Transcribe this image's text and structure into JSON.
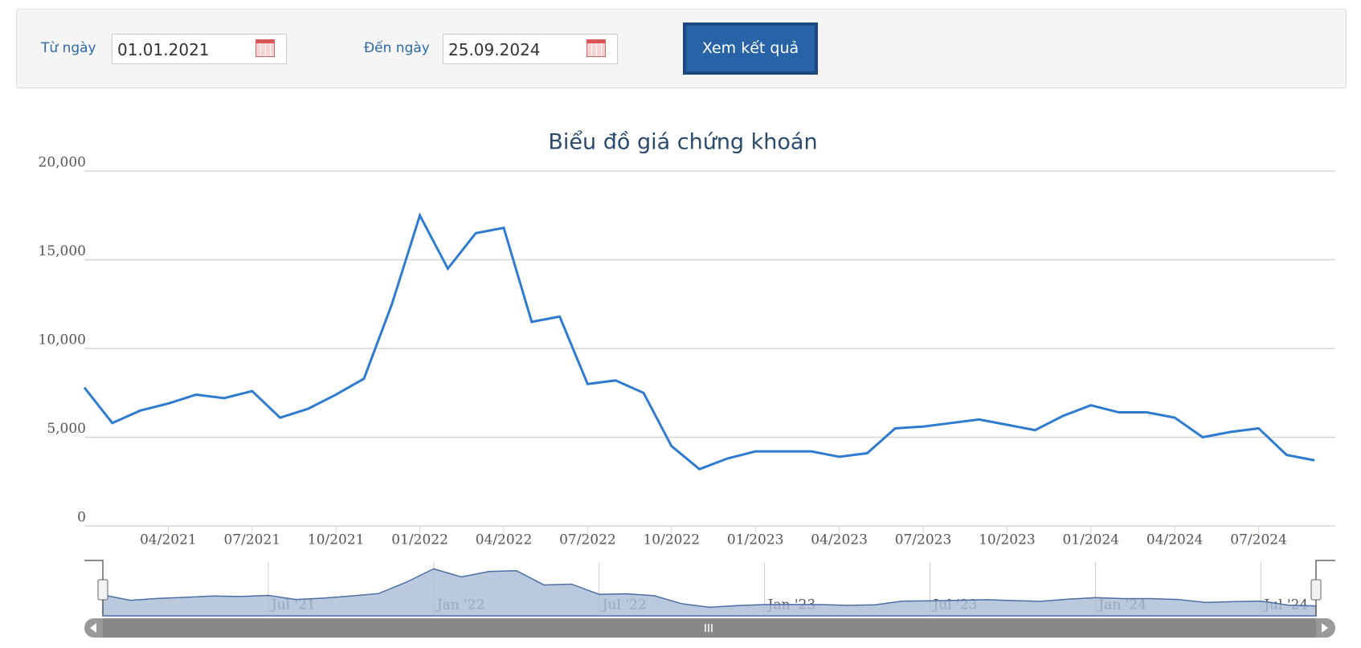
{
  "form": {
    "from_label": "Từ ngày",
    "from_value": "01.01.2021",
    "to_label": "Đến ngày",
    "to_value": "25.09.2024",
    "button": "Xem kết quả"
  },
  "chart_data": {
    "type": "line",
    "title": "Biểu đồ giá chứng khoán",
    "x": [
      "01/2021",
      "02/2021",
      "03/2021",
      "04/2021",
      "05/2021",
      "06/2021",
      "07/2021",
      "08/2021",
      "09/2021",
      "10/2021",
      "11/2021",
      "12/2021",
      "01/2022",
      "02/2022",
      "03/2022",
      "04/2022",
      "05/2022",
      "06/2022",
      "07/2022",
      "08/2022",
      "09/2022",
      "10/2022",
      "11/2022",
      "12/2022",
      "01/2023",
      "02/2023",
      "03/2023",
      "04/2023",
      "05/2023",
      "06/2023",
      "07/2023",
      "08/2023",
      "09/2023",
      "10/2023",
      "11/2023",
      "12/2023",
      "01/2024",
      "02/2024",
      "03/2024",
      "04/2024",
      "05/2024",
      "06/2024",
      "07/2024",
      "08/2024",
      "09/2024"
    ],
    "series": [
      {
        "name": "Giá",
        "color": "#2e7bcf",
        "values": [
          7800,
          5800,
          6500,
          6900,
          7400,
          7200,
          7600,
          6100,
          6600,
          7400,
          8300,
          12500,
          17500,
          14500,
          16500,
          16800,
          11500,
          11800,
          8000,
          8200,
          7500,
          4500,
          3200,
          3800,
          4200,
          4200,
          4200,
          3900,
          4100,
          5500,
          5600,
          5800,
          6000,
          5700,
          5400,
          6200,
          6800,
          6400,
          6400,
          6100,
          5000,
          5300,
          5500,
          4000,
          3700
        ]
      }
    ],
    "ylim": [
      0,
      20000
    ],
    "yticks": [
      0,
      {
        "value": 5000,
        "label": "5,000"
      },
      {
        "value": 10000,
        "label": "10,000"
      },
      {
        "value": 15000,
        "label": "15,000"
      },
      {
        "value": 20000,
        "label": "20,000"
      }
    ],
    "xticks": [
      "04/2021",
      "07/2021",
      "10/2021",
      "01/2022",
      "04/2022",
      "07/2022",
      "10/2022",
      "01/2023",
      "04/2023",
      "07/2023",
      "10/2023",
      "01/2024",
      "04/2024",
      "07/2024"
    ],
    "grid": true,
    "navigator": {
      "color": "#a9bcd6",
      "xticks": [
        {
          "value": "07/2021",
          "label": "Jul '21"
        },
        {
          "value": "01/2022",
          "label": "Jan '22"
        },
        {
          "value": "07/2022",
          "label": "Jul '22"
        },
        {
          "value": "01/2023",
          "label": "Jan '23"
        },
        {
          "value": "07/2023",
          "label": "Jul '23"
        },
        {
          "value": "01/2024",
          "label": "Jan '24"
        },
        {
          "value": "07/2024",
          "label": "Jul '24"
        }
      ]
    }
  }
}
